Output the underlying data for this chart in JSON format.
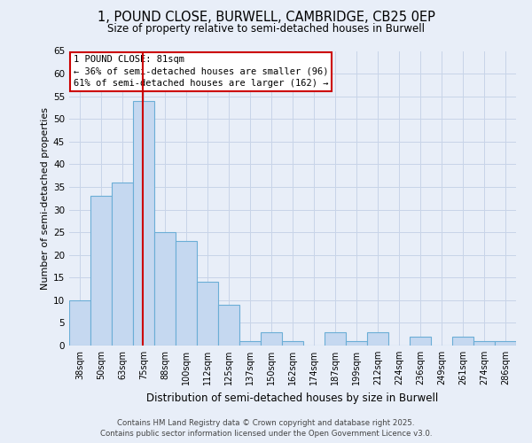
{
  "title1": "1, POUND CLOSE, BURWELL, CAMBRIDGE, CB25 0EP",
  "title2": "Size of property relative to semi-detached houses in Burwell",
  "xlabel": "Distribution of semi-detached houses by size in Burwell",
  "ylabel": "Number of semi-detached properties",
  "footnote1": "Contains HM Land Registry data © Crown copyright and database right 2025.",
  "footnote2": "Contains public sector information licensed under the Open Government Licence v3.0.",
  "property_label": "1 POUND CLOSE: 81sqm",
  "annotation_left": "← 36% of semi-detached houses are smaller (96)",
  "annotation_right": "61% of semi-detached houses are larger (162) →",
  "bin_labels": [
    "38sqm",
    "50sqm",
    "63sqm",
    "75sqm",
    "88sqm",
    "100sqm",
    "112sqm",
    "125sqm",
    "137sqm",
    "150sqm",
    "162sqm",
    "174sqm",
    "187sqm",
    "199sqm",
    "212sqm",
    "224sqm",
    "236sqm",
    "249sqm",
    "261sqm",
    "274sqm",
    "286sqm"
  ],
  "counts": [
    10,
    33,
    36,
    54,
    25,
    23,
    14,
    9,
    1,
    3,
    1,
    0,
    3,
    1,
    3,
    0,
    2,
    0,
    2,
    1,
    1
  ],
  "bar_color": "#c5d8f0",
  "bar_edge_color": "#6baed6",
  "vline_color": "#cc0000",
  "vline_x_idx": 3.46,
  "ylim": [
    0,
    65
  ],
  "yticks": [
    0,
    5,
    10,
    15,
    20,
    25,
    30,
    35,
    40,
    45,
    50,
    55,
    60,
    65
  ],
  "background_color": "#e8eef8",
  "annotation_box_facecolor": "#ffffff",
  "annotation_box_edgecolor": "#cc0000",
  "grid_color": "#c8d4e8",
  "title_fontsize": 10.5,
  "subtitle_fontsize": 8.5
}
